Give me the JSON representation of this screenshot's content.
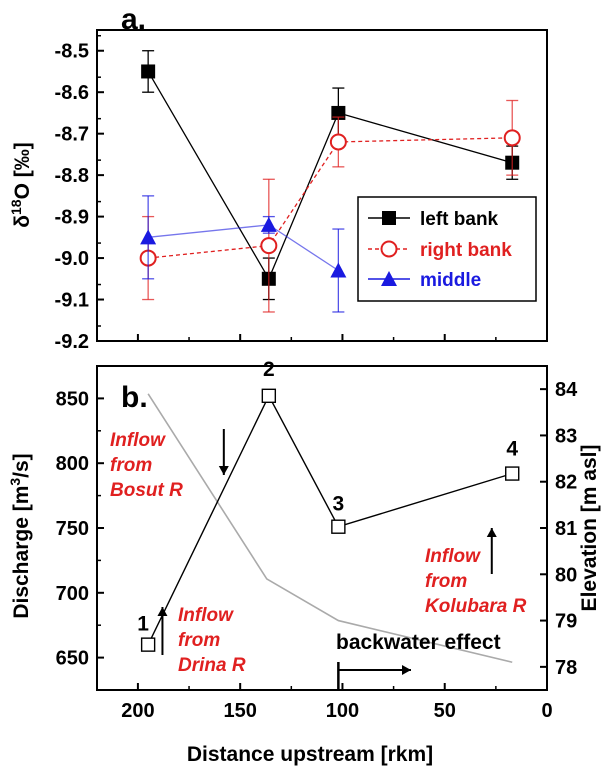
{
  "chart_data": [
    {
      "type": "line",
      "panel_label": "a.",
      "xlim": [
        220,
        0
      ],
      "ylim": [
        -9.2,
        -8.45
      ],
      "yticks": [
        -9.2,
        -9.1,
        -9.0,
        -8.9,
        -8.8,
        -8.7,
        -8.6,
        -8.5
      ],
      "ytick_labels": [
        "-9.2",
        "-9.1",
        "-9.0",
        "-8.9",
        "-8.8",
        "-8.7",
        "-8.6",
        "-8.5"
      ],
      "ylabel_main": "δ",
      "ylabel_sup": "18",
      "ylabel_rest": "O [‰]",
      "legend_position": "right",
      "series": [
        {
          "name": "left bank",
          "color": "#000000",
          "marker": "filled-square",
          "line": "solid",
          "x": [
            195,
            136,
            102,
            17
          ],
          "y": [
            -8.55,
            -9.05,
            -8.65,
            -8.77
          ],
          "err": [
            0.05,
            0.05,
            0.06,
            0.04
          ]
        },
        {
          "name": "right bank",
          "color": "#e02020",
          "marker": "open-circle",
          "line": "dashed",
          "x": [
            195,
            136,
            102,
            17
          ],
          "y": [
            -9.0,
            -8.97,
            -8.72,
            -8.71
          ],
          "err": [
            0.1,
            0.16,
            0.06,
            0.09
          ]
        },
        {
          "name": "middle",
          "color": "#1a1ae0",
          "marker": "filled-triangle",
          "line": "solid",
          "x": [
            195,
            136,
            102
          ],
          "y": [
            -8.95,
            -8.92,
            -9.03
          ],
          "err": [
            0.1,
            0.02,
            0.1
          ]
        }
      ]
    },
    {
      "type": "line",
      "panel_label": "b.",
      "xlim": [
        220,
        0
      ],
      "xticks": [
        200,
        150,
        100,
        50,
        0
      ],
      "xtick_labels": [
        "200",
        "150",
        "100",
        "50",
        "0"
      ],
      "xlabel": "Distance upstream [rkm]",
      "ylim_left": [
        625,
        875
      ],
      "yticks_left": [
        650,
        700,
        750,
        800,
        850
      ],
      "ytick_labels_left": [
        "650",
        "700",
        "750",
        "800",
        "850"
      ],
      "ylabel_left_pre": "Discharge [m",
      "ylabel_left_sup": "3",
      "ylabel_left_post": "/s]",
      "ylim_right": [
        77.5,
        84.5
      ],
      "yticks_right": [
        78,
        79,
        80,
        81,
        82,
        83,
        84
      ],
      "ytick_labels_right": [
        "78",
        "79",
        "80",
        "81",
        "82",
        "83",
        "84"
      ],
      "ylabel_right": "Elevation [m asl]",
      "discharge": {
        "color": "#000000",
        "x": [
          195,
          136,
          102,
          17
        ],
        "y": [
          660,
          852,
          751,
          792
        ],
        "point_labels": [
          "1",
          "2",
          "3",
          "4"
        ]
      },
      "elevation": {
        "color": "#aaaaaa",
        "x": [
          195,
          137,
          102,
          17
        ],
        "y": [
          83.9,
          79.9,
          79.0,
          78.1
        ]
      },
      "annotations": [
        {
          "lines": [
            "Inflow",
            "from",
            "Bosut R"
          ],
          "color": "#e02020",
          "arrow": "down",
          "x": 158
        },
        {
          "lines": [
            "Inflow",
            "from",
            "Drina R"
          ],
          "color": "#e02020",
          "arrow": "up",
          "x": 188
        },
        {
          "lines": [
            "Inflow",
            "from",
            "Kolubara R"
          ],
          "color": "#e02020",
          "arrow": "up",
          "x": 27
        },
        {
          "lines": [
            "backwater effect"
          ],
          "color": "#000000",
          "arrow": "right",
          "x": 102
        }
      ]
    }
  ]
}
